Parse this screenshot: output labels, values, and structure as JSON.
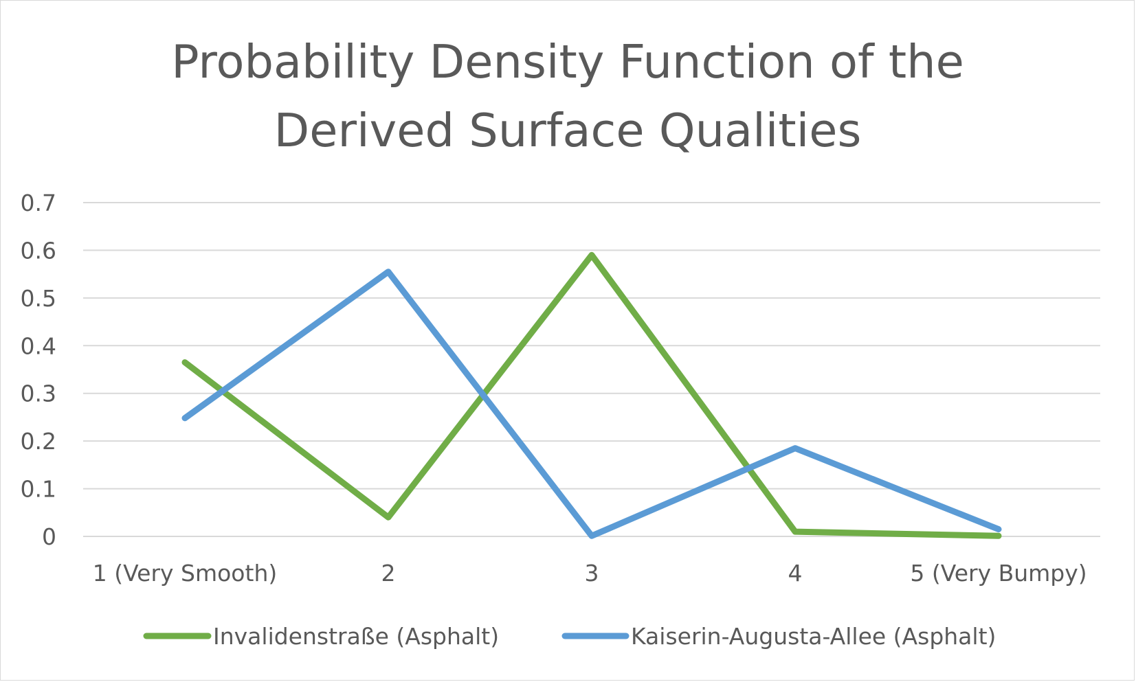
{
  "chart_data": {
    "type": "line",
    "title": "Probability Density Function of the Derived Surface Qualities",
    "title_lines": [
      "Probability Density Function of the",
      "Derived Surface Qualities"
    ],
    "xlabel": "",
    "ylabel": "",
    "categories": [
      "1 (Very Smooth)",
      "2",
      "3",
      "4",
      "5 (Very Bumpy)"
    ],
    "ylim": [
      0,
      0.7
    ],
    "yticks": [
      0,
      0.1,
      0.2,
      0.3,
      0.4,
      0.5,
      0.6,
      0.7
    ],
    "ytick_labels": [
      "0",
      "0.1",
      "0.2",
      "0.3",
      "0.4",
      "0.5",
      "0.6",
      "0.7"
    ],
    "grid": true,
    "legend_position": "bottom",
    "series": [
      {
        "name": "Invalidenstraße (Asphalt)",
        "color": "#70ad47",
        "values": [
          0.365,
          0.04,
          0.59,
          0.01,
          0.001
        ]
      },
      {
        "name": "Kaiserin-Augusta-Allee (Asphalt)",
        "color": "#5b9bd5",
        "values": [
          0.248,
          0.555,
          0.001,
          0.185,
          0.015
        ]
      }
    ]
  }
}
